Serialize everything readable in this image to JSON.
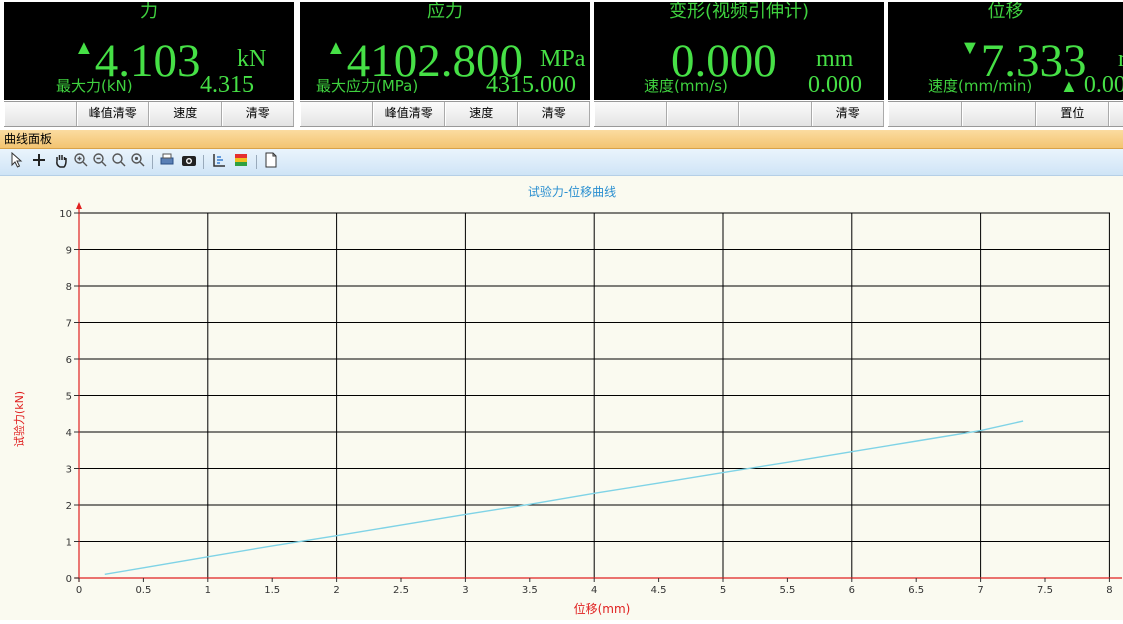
{
  "meters": [
    {
      "title": "力",
      "arrow": "▲",
      "value": "4.103",
      "unit": "kN",
      "sub_label": "最大力(kN)",
      "sub_value": "4.315",
      "buttons": [
        "",
        "峰值清零",
        "速度",
        "清零"
      ]
    },
    {
      "title": "应力",
      "arrow": "▲",
      "value": "4102.800",
      "unit": "MPa",
      "sub_label": "最大应力(MPa)",
      "sub_value": "4315.000",
      "buttons": [
        "",
        "峰值清零",
        "速度",
        "清零"
      ]
    },
    {
      "title": "变形(视频引伸计)",
      "arrow": "",
      "value": "0.000",
      "unit": "mm",
      "sub_label": "速度(mm/s)",
      "sub_value": "0.000",
      "buttons": [
        "",
        "",
        "",
        "清零"
      ]
    },
    {
      "title": "位移",
      "arrow": "▼",
      "value": "7.333",
      "unit": "r",
      "sub_label": "速度(mm/min)",
      "sub_arrow": "▲",
      "sub_value": "0.00",
      "buttons": [
        "",
        "",
        "置位",
        ""
      ]
    }
  ],
  "curve_panel": {
    "header": "曲线面板",
    "toolbar_icons": [
      "pointer-icon",
      "crosshair-icon",
      "hand-pan-icon",
      "zoom-in-icon",
      "zoom-out-icon",
      "zoom-box-icon",
      "zoom-reset-icon",
      "print-icon",
      "camera-icon",
      "axis-settings-icon",
      "color-legend-icon",
      "export-page-icon"
    ]
  },
  "chart_data": {
    "type": "line",
    "title": "试验力-位移曲线",
    "xlabel": "位移(mm)",
    "ylabel": "试验力(kN)",
    "xlim": [
      0,
      9
    ],
    "ylim": [
      0,
      10
    ],
    "xticks": [
      "0",
      "0.5",
      "1",
      "1.5",
      "2",
      "2.5",
      "3",
      "3.5",
      "4",
      "4.5",
      "5",
      "5.5",
      "6",
      "6.5",
      "7",
      "7.5",
      "8"
    ],
    "yticks": [
      "0",
      "1",
      "2",
      "3",
      "4",
      "5",
      "6",
      "7",
      "8",
      "9",
      "10"
    ],
    "grid": true,
    "colors": {
      "axis": "#e02020",
      "grid": "#000000",
      "line": "#7fd3e6",
      "title": "#2a8fd0"
    },
    "series": [
      {
        "x": [
          0.2,
          0.5,
          1.0,
          1.5,
          2.0,
          2.5,
          3.0,
          3.5,
          4.0,
          4.5,
          5.0,
          5.5,
          6.0,
          6.5,
          7.0,
          7.33
        ],
        "y": [
          0.1,
          0.28,
          0.58,
          0.88,
          1.16,
          1.45,
          1.74,
          2.02,
          2.32,
          2.6,
          2.89,
          3.17,
          3.46,
          3.75,
          4.04,
          4.3
        ]
      }
    ]
  }
}
